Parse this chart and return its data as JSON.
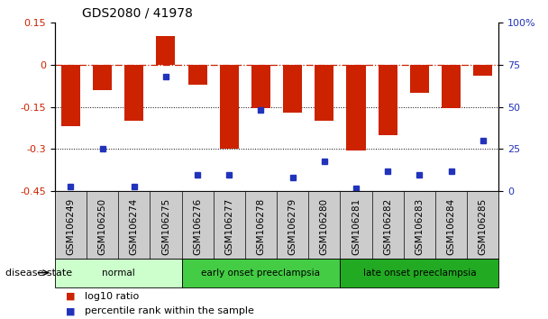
{
  "title": "GDS2080 / 41978",
  "samples": [
    "GSM106249",
    "GSM106250",
    "GSM106274",
    "GSM106275",
    "GSM106276",
    "GSM106277",
    "GSM106278",
    "GSM106279",
    "GSM106280",
    "GSM106281",
    "GSM106282",
    "GSM106283",
    "GSM106284",
    "GSM106285"
  ],
  "log10_ratio": [
    -0.22,
    -0.09,
    -0.2,
    0.1,
    -0.07,
    -0.3,
    -0.155,
    -0.17,
    -0.2,
    -0.305,
    -0.25,
    -0.1,
    -0.155,
    -0.04
  ],
  "percentile_rank": [
    3,
    25,
    3,
    68,
    10,
    10,
    48,
    8,
    18,
    2,
    12,
    10,
    12,
    30
  ],
  "ylim_left": [
    -0.45,
    0.15
  ],
  "ylim_right": [
    0,
    100
  ],
  "yticks_left": [
    0.15,
    0.0,
    -0.15,
    -0.3,
    -0.45
  ],
  "yticks_left_labels": [
    "0.15",
    "0",
    "-0.15",
    "-0.3",
    "-0.45"
  ],
  "yticks_right": [
    100,
    75,
    50,
    25,
    0
  ],
  "yticks_right_labels": [
    "100%",
    "75",
    "50",
    "25",
    "0"
  ],
  "hline_y": 0,
  "dotted_lines": [
    -0.15,
    -0.3
  ],
  "bar_color": "#cc2200",
  "dot_color": "#2233bb",
  "background_color": "#ffffff",
  "groups": [
    {
      "label": "normal",
      "start": 0,
      "end": 3,
      "color": "#ccffcc"
    },
    {
      "label": "early onset preeclampsia",
      "start": 4,
      "end": 8,
      "color": "#44cc44"
    },
    {
      "label": "late onset preeclampsia",
      "start": 9,
      "end": 13,
      "color": "#22aa22"
    }
  ],
  "legend_items": [
    {
      "label": "log10 ratio",
      "color": "#cc2200"
    },
    {
      "label": "percentile rank within the sample",
      "color": "#2233bb"
    }
  ],
  "disease_state_label": "disease state",
  "title_fontsize": 10,
  "tick_fontsize": 8,
  "label_fontsize": 7.5
}
